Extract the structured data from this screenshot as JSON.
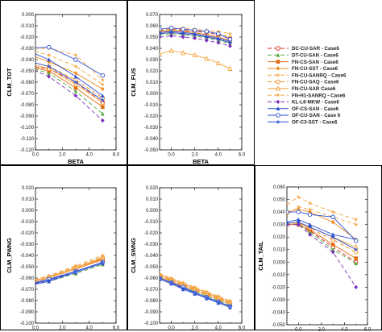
{
  "legend": {
    "entries": [
      {
        "label": "DC-CU-SAR - Case6",
        "color": "#d9261c",
        "dash": "5,3",
        "marker": "circle-open"
      },
      {
        "label": "DT-CU-SAN - Case6",
        "color": "#4fae3c",
        "dash": "5,3",
        "marker": "triangle"
      },
      {
        "label": "FN-CS-SAN - Case6",
        "color": "#e06a10",
        "dash": "",
        "marker": "square"
      },
      {
        "label": "FN-CU-SST - Case6",
        "color": "#f08a1e",
        "dash": "",
        "marker": "diamond"
      },
      {
        "label": "FN-CU-SANRQ - Case6",
        "color": "#f5a640",
        "dash": "5,3",
        "marker": "star"
      },
      {
        "label": "FN-CU-SAQ - Case6",
        "color": "#f08a1e",
        "dash": "5,3",
        "marker": "circle-open"
      },
      {
        "label": "FN-CU-SAR Case6",
        "color": "#f5a640",
        "dash": "",
        "marker": "triangle-open"
      },
      {
        "label": "FN-H1-SANRQ - Case6",
        "color": "#f5a640",
        "dash": "5,3",
        "marker": "star"
      },
      {
        "label": "KL-L6-MKW - Case6",
        "color": "#7b2fbf",
        "dash": "5,3",
        "marker": "diamond"
      },
      {
        "label": "OF-CS-SAN - Case6",
        "color": "#2a4fd0",
        "dash": "",
        "marker": "triangle"
      },
      {
        "label": "OF-CU-SAN - Case 6",
        "color": "#2a4fd0",
        "dash": "",
        "marker": "circle-open"
      },
      {
        "label": "OF-C3-SST - Case6",
        "color": "#2a4fd0",
        "dash": "",
        "marker": "star"
      }
    ]
  },
  "chart_data": [
    {
      "type": "line",
      "xlabel": "BETA",
      "ylabel": "CLM_TOT",
      "xlim": [
        0,
        6
      ],
      "ylim": [
        -0.12,
        0
      ],
      "xticks": [
        "0.0",
        "2.0",
        "4.0",
        "6.0"
      ],
      "yticks": [
        "0.000",
        "-0.010",
        "-0.020",
        "-0.030",
        "-0.040",
        "-0.050",
        "-0.060",
        "-0.070",
        "-0.080",
        "-0.090",
        "-0.100",
        "-0.110",
        "-0.120"
      ],
      "x": [
        -1,
        1,
        3,
        5
      ],
      "series": [
        {
          "name": "DC-CU-SAR - Case6",
          "values": [
            -0.045,
            -0.048,
            -0.06,
            -0.078
          ]
        },
        {
          "name": "DT-CU-SAN - Case6",
          "values": [
            -0.045,
            -0.052,
            -0.068,
            -0.088
          ]
        },
        {
          "name": "FN-CS-SAN - Case6",
          "values": [
            -0.045,
            -0.05,
            -0.065,
            -0.082
          ]
        },
        {
          "name": "FN-CU-SST - Case6",
          "values": [
            -0.033,
            -0.042,
            -0.052,
            -0.066
          ]
        },
        {
          "name": "FN-CU-SANRQ - Case6",
          "values": [
            -0.03,
            -0.03,
            -0.036,
            -0.058
          ]
        },
        {
          "name": "FN-CU-SAQ - Case6",
          "values": [
            -0.04,
            -0.046,
            -0.058,
            -0.074
          ]
        },
        {
          "name": "FN-CU-SAR Case6",
          "values": [
            -0.042,
            -0.048,
            -0.062,
            -0.078
          ]
        },
        {
          "name": "FN-H1-SANRQ - Case6",
          "values": [
            -0.03,
            -0.036,
            -0.046,
            -0.062
          ]
        },
        {
          "name": "KL-L6-MKW - Case6",
          "values": [
            -0.045,
            -0.055,
            -0.072,
            -0.094
          ]
        },
        {
          "name": "OF-CS-SAN - Case6",
          "values": [
            -0.03,
            -0.04,
            -0.055,
            -0.072
          ]
        },
        {
          "name": "OF-CU-SAN - Case 6",
          "values": [
            -0.03,
            -0.029,
            -0.04,
            -0.054
          ]
        },
        {
          "name": "OF-C3-SST - Case6",
          "values": [
            -0.04,
            -0.046,
            -0.06,
            -0.076
          ]
        }
      ]
    },
    {
      "type": "line",
      "xlabel": "BETA",
      "ylabel": "CLM_FUS",
      "xlim": [
        -1,
        6
      ],
      "ylim": [
        -0.05,
        0.07
      ],
      "xticks": [
        "0.0",
        "2.0",
        "4.0",
        "6.0"
      ],
      "yticks": [
        "0.070",
        "0.060",
        "0.050",
        "0.040",
        "0.030",
        "0.020",
        "0.010",
        "0.000",
        "-0.010",
        "-0.020",
        "-0.030",
        "-0.040",
        "-0.050"
      ],
      "x": [
        -1,
        0,
        1,
        2,
        3,
        4,
        5
      ],
      "series": [
        {
          "name": "DC-CU-SAR - Case6",
          "values": [
            0.056,
            0.057,
            0.056,
            0.055,
            0.054,
            0.052,
            0.049
          ]
        },
        {
          "name": "DT-CU-SAN - Case6",
          "values": [
            0.052,
            0.053,
            0.052,
            0.051,
            0.049,
            0.047,
            0.044
          ]
        },
        {
          "name": "FN-CS-SAN - Case6",
          "values": [
            0.055,
            0.056,
            0.055,
            0.054,
            0.052,
            0.05,
            0.047
          ]
        },
        {
          "name": "FN-CU-SST - Case6",
          "values": [
            0.053,
            0.054,
            0.053,
            0.052,
            0.05,
            0.048,
            0.045
          ]
        },
        {
          "name": "FN-CU-SANRQ - Case6",
          "values": [
            0.057,
            0.058,
            0.058,
            0.057,
            0.056,
            0.055,
            0.053
          ]
        },
        {
          "name": "FN-CU-SAQ - Case6",
          "values": [
            0.054,
            0.055,
            0.054,
            0.053,
            0.051,
            0.049,
            0.046
          ]
        },
        {
          "name": "FN-CU-SAR Case6",
          "values": [
            0.035,
            0.038,
            0.036,
            0.034,
            0.031,
            0.027,
            0.022
          ]
        },
        {
          "name": "FN-H1-SANRQ - Case6",
          "values": [
            0.056,
            0.057,
            0.057,
            0.056,
            0.055,
            0.053,
            0.05
          ]
        },
        {
          "name": "KL-L6-MKW - Case6",
          "values": [
            0.05,
            0.051,
            0.05,
            0.049,
            0.047,
            0.045,
            0.042
          ]
        },
        {
          "name": "OF-CS-SAN - Case6",
          "values": [
            0.054,
            0.055,
            0.054,
            0.053,
            0.051,
            0.049,
            0.046
          ]
        },
        {
          "name": "OF-CU-SAN - Case 6",
          "values": [
            0.057,
            0.058,
            0.057,
            0.056,
            0.055,
            0.053,
            0.048
          ]
        },
        {
          "name": "OF-C3-SST - Case6",
          "values": [
            0.053,
            0.054,
            0.053,
            0.052,
            0.05,
            0.048,
            0.045
          ]
        }
      ]
    },
    {
      "type": "line",
      "xlabel": "BETA",
      "ylabel": "CLM_PWNG",
      "xlim": [
        0,
        6
      ],
      "ylim": [
        -0.1,
        0.02
      ],
      "xticks": [
        "0.0",
        "2.0",
        "4.0",
        "6.0"
      ],
      "yticks": [
        "0.020",
        "0.010",
        "0.000",
        "-0.010",
        "-0.020",
        "-0.030",
        "-0.040",
        "-0.050",
        "-0.060",
        "-0.070",
        "-0.080",
        "-0.090",
        "-0.100"
      ],
      "x": [
        -1,
        1,
        3,
        5
      ],
      "series": [
        {
          "name": "DC-CU-SAR - Case6",
          "values": [
            -0.066,
            -0.06,
            -0.052,
            -0.044
          ]
        },
        {
          "name": "DT-CU-SAN - Case6",
          "values": [
            -0.068,
            -0.063,
            -0.056,
            -0.048
          ]
        },
        {
          "name": "FN-CS-SAN - Case6",
          "values": [
            -0.066,
            -0.06,
            -0.052,
            -0.043
          ]
        },
        {
          "name": "FN-CU-SST - Case6",
          "values": [
            -0.065,
            -0.059,
            -0.051,
            -0.042
          ]
        },
        {
          "name": "FN-CU-SANRQ - Case6",
          "values": [
            -0.064,
            -0.058,
            -0.049,
            -0.04
          ]
        },
        {
          "name": "FN-CU-SAQ - Case6",
          "values": [
            -0.065,
            -0.059,
            -0.051,
            -0.042
          ]
        },
        {
          "name": "FN-CU-SAR Case6",
          "values": [
            -0.066,
            -0.06,
            -0.052,
            -0.044
          ]
        },
        {
          "name": "FN-H1-SANRQ - Case6",
          "values": [
            -0.064,
            -0.058,
            -0.05,
            -0.041
          ]
        },
        {
          "name": "KL-L6-MKW - Case6",
          "values": [
            -0.068,
            -0.062,
            -0.055,
            -0.047
          ]
        },
        {
          "name": "OF-CS-SAN - Case6",
          "values": [
            -0.068,
            -0.063,
            -0.055,
            -0.047
          ]
        },
        {
          "name": "OF-CU-SAN - Case 6",
          "values": [
            -0.067,
            -0.061,
            -0.054,
            -0.046
          ]
        },
        {
          "name": "OF-C3-SST - Case6",
          "values": [
            -0.067,
            -0.062,
            -0.054,
            -0.046
          ]
        }
      ]
    },
    {
      "type": "line",
      "xlabel": "BETA",
      "ylabel": "CLM_SWNG",
      "xlim": [
        -1,
        6
      ],
      "ylim": [
        -0.1,
        0.02
      ],
      "xticks": [
        "0.0",
        "2.0",
        "4.0",
        "6.0"
      ],
      "yticks": [
        "0.020",
        "0.010",
        "0.000",
        "-0.010",
        "-0.020",
        "-0.030",
        "-0.040",
        "-0.050",
        "-0.060",
        "-0.070",
        "-0.080",
        "-0.090",
        "-0.100"
      ],
      "x": [
        -1,
        0,
        1,
        2,
        3,
        4,
        5
      ],
      "series": [
        {
          "name": "DC-CU-SAR - Case6",
          "values": [
            -0.058,
            -0.062,
            -0.066,
            -0.07,
            -0.074,
            -0.078,
            -0.082
          ]
        },
        {
          "name": "DT-CU-SAN - Case6",
          "values": [
            -0.06,
            -0.064,
            -0.068,
            -0.072,
            -0.076,
            -0.08,
            -0.084
          ]
        },
        {
          "name": "FN-CS-SAN - Case6",
          "values": [
            -0.059,
            -0.063,
            -0.067,
            -0.071,
            -0.075,
            -0.079,
            -0.083
          ]
        },
        {
          "name": "FN-CU-SST - Case6",
          "values": [
            -0.057,
            -0.061,
            -0.065,
            -0.069,
            -0.073,
            -0.077,
            -0.081
          ]
        },
        {
          "name": "FN-CU-SANRQ - Case6",
          "values": [
            -0.056,
            -0.06,
            -0.064,
            -0.068,
            -0.072,
            -0.076,
            -0.08
          ]
        },
        {
          "name": "FN-CU-SAQ - Case6",
          "values": [
            -0.058,
            -0.062,
            -0.066,
            -0.07,
            -0.074,
            -0.078,
            -0.082
          ]
        },
        {
          "name": "FN-CU-SAR Case6",
          "values": [
            -0.059,
            -0.063,
            -0.067,
            -0.071,
            -0.075,
            -0.079,
            -0.083
          ]
        },
        {
          "name": "FN-H1-SANRQ - Case6",
          "values": [
            -0.057,
            -0.061,
            -0.065,
            -0.069,
            -0.073,
            -0.077,
            -0.081
          ]
        },
        {
          "name": "KL-L6-MKW - Case6",
          "values": [
            -0.061,
            -0.065,
            -0.069,
            -0.073,
            -0.077,
            -0.081,
            -0.085
          ]
        },
        {
          "name": "OF-CS-SAN - Case6",
          "values": [
            -0.061,
            -0.065,
            -0.07,
            -0.074,
            -0.078,
            -0.082,
            -0.086
          ]
        },
        {
          "name": "OF-CU-SAN - Case 6",
          "values": [
            -0.06,
            -0.064,
            -0.068,
            -0.073,
            -0.077,
            -0.081,
            -0.085
          ]
        },
        {
          "name": "OF-C3-SST - Case6",
          "values": [
            -0.06,
            -0.064,
            -0.069,
            -0.073,
            -0.077,
            -0.081,
            -0.085
          ]
        }
      ]
    },
    {
      "type": "line",
      "xlabel": "",
      "ylabel": "CLM_TAIL",
      "xlim": [
        -1,
        6
      ],
      "ylim": [
        -0.05,
        0.06
      ],
      "xticks": [
        "0.0",
        "2.0",
        "4.0",
        "6.0"
      ],
      "yticks": [
        "0.060",
        "0.050",
        "0.040",
        "0.030",
        "0.020",
        "0.010",
        "0.000",
        "-0.010",
        "-0.020",
        "-0.030",
        "-0.040",
        "-0.050"
      ],
      "x": [
        -1,
        0,
        1,
        3,
        5
      ],
      "series": [
        {
          "name": "DC-CU-SAR - Case6",
          "values": [
            0.03,
            0.03,
            0.025,
            0.012,
            0.0
          ]
        },
        {
          "name": "DT-CU-SAN - Case6",
          "values": [
            0.03,
            0.03,
            0.024,
            0.01,
            -0.001
          ]
        },
        {
          "name": "FN-CS-SAN - Case6",
          "values": [
            0.03,
            0.03,
            0.026,
            0.014,
            0.003
          ]
        },
        {
          "name": "FN-CU-SST - Case6",
          "values": [
            0.04,
            0.042,
            0.04,
            0.032,
            0.018
          ]
        },
        {
          "name": "FN-CU-SANRQ - Case6",
          "values": [
            0.046,
            0.052,
            0.047,
            0.04,
            0.034
          ]
        },
        {
          "name": "FN-CU-SAQ - Case6",
          "values": [
            0.03,
            0.031,
            0.027,
            0.018,
            0.008
          ]
        },
        {
          "name": "FN-CU-SAR Case6",
          "values": [
            0.03,
            0.031,
            0.028,
            0.02,
            0.012
          ]
        },
        {
          "name": "FN-H1-SANRQ - Case6",
          "values": [
            0.038,
            0.044,
            0.042,
            0.036,
            0.03
          ]
        },
        {
          "name": "KL-L6-MKW - Case6",
          "values": [
            0.03,
            0.03,
            0.022,
            0.008,
            -0.02
          ]
        },
        {
          "name": "OF-CS-SAN - Case6",
          "values": [
            0.032,
            0.034,
            0.03,
            0.022,
            0.018
          ]
        },
        {
          "name": "OF-CU-SAN - Case 6",
          "values": [
            0.04,
            0.04,
            0.038,
            0.036,
            0.017
          ]
        },
        {
          "name": "OF-C3-SST - Case6",
          "values": [
            0.031,
            0.032,
            0.028,
            0.02,
            0.01
          ]
        }
      ]
    }
  ]
}
